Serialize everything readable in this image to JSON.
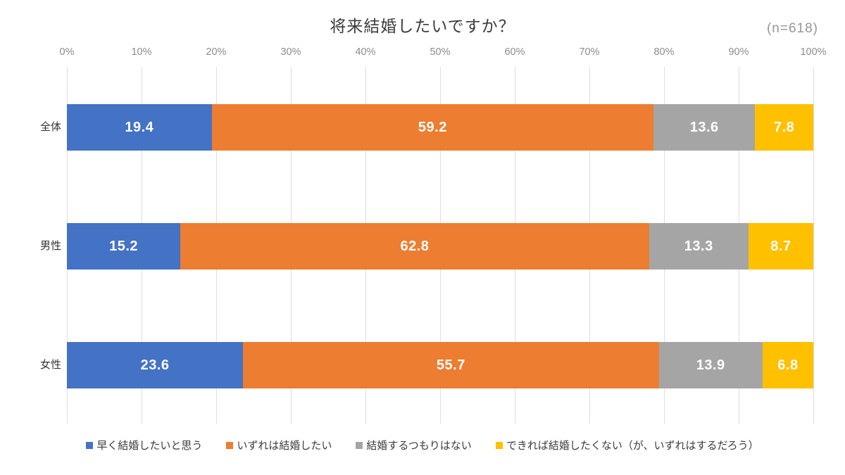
{
  "chart_data": {
    "type": "bar",
    "variant": "stacked-horizontal",
    "title": "将来結婚したいですか？",
    "annotation": "(n=618)",
    "categories": [
      "全体",
      "男性",
      "女性"
    ],
    "series": [
      {
        "name": "早く結婚したいと思う",
        "color": "#4472C4",
        "values": [
          19.4,
          15.2,
          23.6
        ]
      },
      {
        "name": "いずれは結婚したい",
        "color": "#ED7D31",
        "values": [
          59.2,
          62.8,
          55.7
        ]
      },
      {
        "name": "結婚するつもりはない",
        "color": "#A5A5A5",
        "values": [
          13.6,
          13.3,
          13.9
        ]
      },
      {
        "name": "できれば結婚したくない（が、いずれはするだろう）",
        "color": "#FFC000",
        "values": [
          7.8,
          8.7,
          6.8
        ]
      }
    ],
    "x_axis": {
      "min": 0,
      "max": 100,
      "tick_step": 10,
      "tick_labels": [
        "0%",
        "10%",
        "20%",
        "30%",
        "40%",
        "50%",
        "60%",
        "70%",
        "80%",
        "90%",
        "100%"
      ],
      "position": "top"
    },
    "grid": true,
    "legend_position": "bottom",
    "value_label_color": "#FFFFFF"
  },
  "style_colors": {
    "gridline": "#DEDEDE",
    "axis_text": "#8C8C8C",
    "title_text": "#3B3B3B",
    "annotation_text": "#969696",
    "category_text": "#333333",
    "legend_text": "#3B3B3B"
  }
}
